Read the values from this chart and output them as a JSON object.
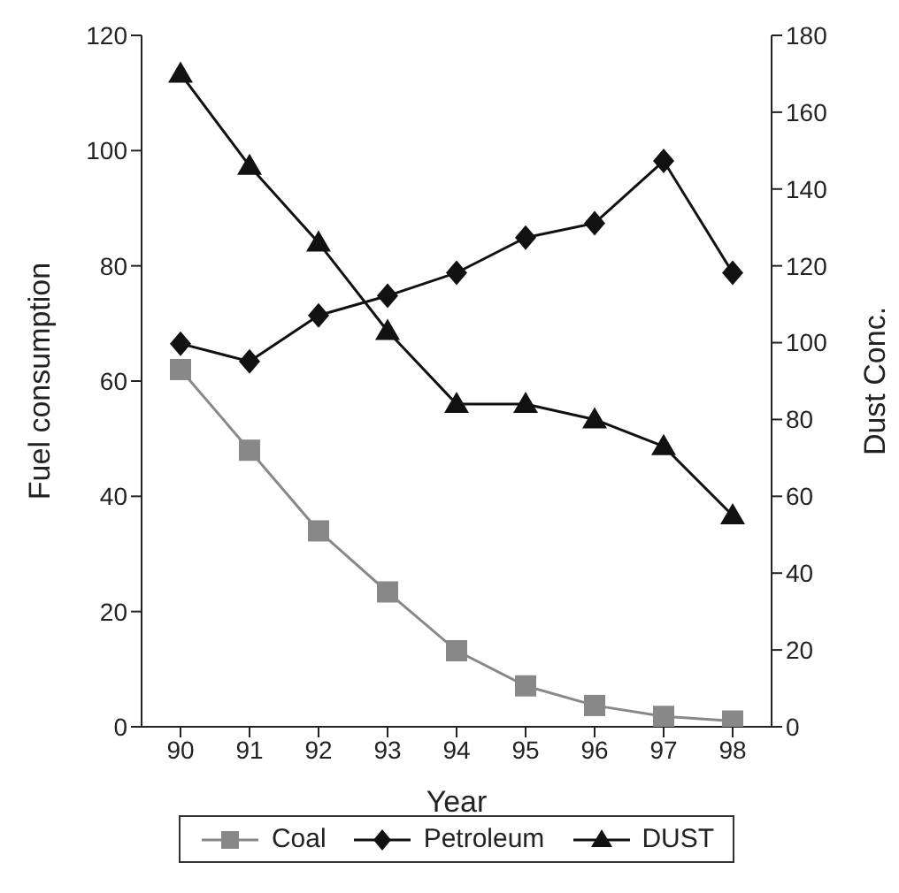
{
  "chart_data": {
    "type": "line",
    "xlabel": "Year",
    "ylabel": "Fuel consumption",
    "y2label": "Dust Conc.",
    "categories": [
      "90",
      "91",
      "92",
      "93",
      "94",
      "95",
      "96",
      "97",
      "98"
    ],
    "series": [
      {
        "name": "Coal",
        "color": "#888888",
        "marker": "square",
        "values": [
          62,
          48,
          34,
          23.4,
          13.2,
          7.1,
          3.7,
          1.8,
          1
        ]
      },
      {
        "name": "Petroleum",
        "color": "#111111",
        "marker": "diamond",
        "values": [
          66.5,
          63.4,
          71.4,
          74.8,
          78.8,
          84.9,
          87.4,
          98.2,
          78.8
        ]
      },
      {
        "name": "DUST",
        "color": "#111111",
        "marker": "triangle",
        "axis": "y2",
        "values": [
          170,
          146,
          126,
          103,
          84,
          84,
          80,
          73,
          55
        ]
      }
    ],
    "ylim": [
      0,
      120
    ],
    "yticks": [
      0,
      20,
      40,
      60,
      80,
      100,
      120
    ],
    "y2lim": [
      0,
      180
    ],
    "y2ticks": [
      0,
      20,
      40,
      60,
      80,
      100,
      120,
      140,
      160,
      180
    ],
    "grid": false,
    "legend": "bottom",
    "line_style": "solid"
  }
}
